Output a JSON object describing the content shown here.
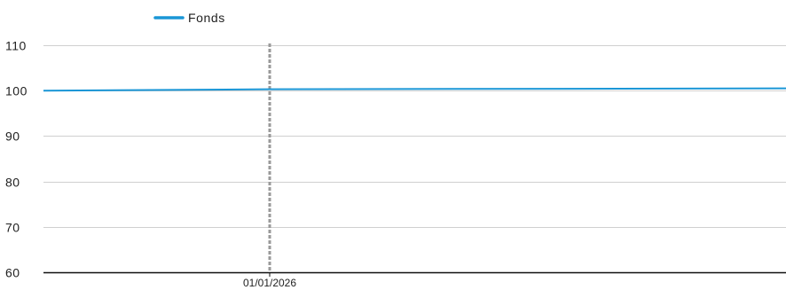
{
  "chart_data": {
    "type": "line",
    "title": "",
    "xlabel": "",
    "ylabel": "",
    "ylim": [
      60,
      110
    ],
    "yticks": [
      60,
      70,
      80,
      90,
      100,
      110
    ],
    "grid": true,
    "legend_position": "top-left",
    "x_ticks": [
      "01/01/2026"
    ],
    "marker_date": "01/01/2026",
    "x": [
      "",
      "01/01/2026",
      ""
    ],
    "series": [
      {
        "name": "Fonds",
        "color": "#1a96d6",
        "values": [
          100.0,
          100.3,
          100.5
        ]
      }
    ]
  },
  "colors": {
    "grid": "#d0d0d0",
    "axis": "#111111",
    "marker_line": "#9a9a9a"
  }
}
